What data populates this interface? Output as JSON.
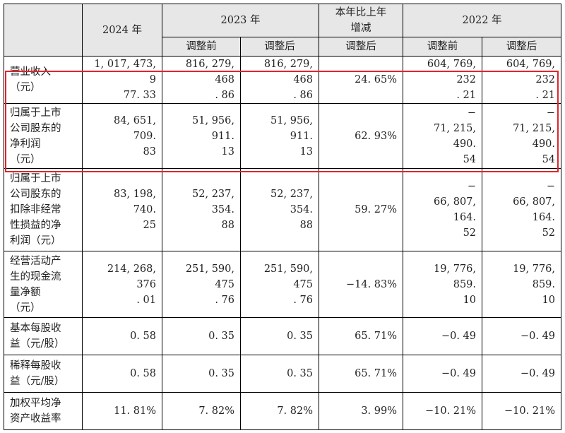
{
  "header": {
    "col_2024": "2024 年",
    "col_2023": "2023 年",
    "col_change": "本年比上年\n增减",
    "col_2022": "2022 年",
    "before_adj": "调整前",
    "after_adj": "调整后",
    "change_after_adj": "调整后",
    "before_adj_2022": "调整前",
    "after_adj_2022": "调整后"
  },
  "rows": [
    {
      "label": "营业收入\n（元）",
      "v2024": "1, 017, 473, 9\n77. 33",
      "v2023_before": "816, 279, 468\n. 86",
      "v2023_after": "816, 279, 468\n. 86",
      "change": "24. 65%",
      "v2022_before": "604, 769, 232\n. 21",
      "v2022_after": "604, 769, 232\n. 21"
    },
    {
      "label": "归属于上市\n公司股东的\n净利润\n（元）",
      "v2024": "84, 651, 709.\n83",
      "v2023_before": "51, 956, 911.\n13",
      "v2023_after": "51, 956, 911.\n13",
      "change": "62. 93%",
      "v2022_before": "−\n71, 215, 490.\n54",
      "v2022_after": "−\n71, 215, 490.\n54"
    },
    {
      "label": "归属于上市\n公司股东的\n扣除非经常\n性损益的净\n利润（元）",
      "v2024": "83, 198, 740.\n25",
      "v2023_before": "52, 237, 354.\n88",
      "v2023_after": "52, 237, 354.\n88",
      "change": "59. 27%",
      "v2022_before": "−\n66, 807, 164.\n52",
      "v2022_after": "−\n66, 807, 164.\n52"
    },
    {
      "label": "经营活动产\n生的现金流\n量净额\n（元）",
      "v2024": "214, 268, 376\n. 01",
      "v2023_before": "251, 590, 475\n. 76",
      "v2023_after": "251, 590, 475\n. 76",
      "change": "−14. 83%",
      "v2022_before": "19, 776, 859.\n10",
      "v2022_after": "19, 776, 859.\n10"
    },
    {
      "label": "基本每股收\n益（元/股）",
      "v2024": "0. 58",
      "v2023_before": "0. 35",
      "v2023_after": "0. 35",
      "change": "65. 71%",
      "v2022_before": "−0. 49",
      "v2022_after": "−0. 49"
    },
    {
      "label": "稀释每股收\n益（元/股）",
      "v2024": "0. 58",
      "v2023_before": "0. 35",
      "v2023_after": "0. 35",
      "change": "65. 71%",
      "v2022_before": "−0. 49",
      "v2022_after": "−0. 49"
    },
    {
      "label": "加权平均净\n资产收益率",
      "v2024": "11. 81%",
      "v2023_before": "7. 82%",
      "v2023_after": "7. 82%",
      "change": "3. 99%",
      "v2022_before": "−10. 21%",
      "v2022_after": "−10. 21%"
    }
  ],
  "highlight_color": "#e0252c"
}
